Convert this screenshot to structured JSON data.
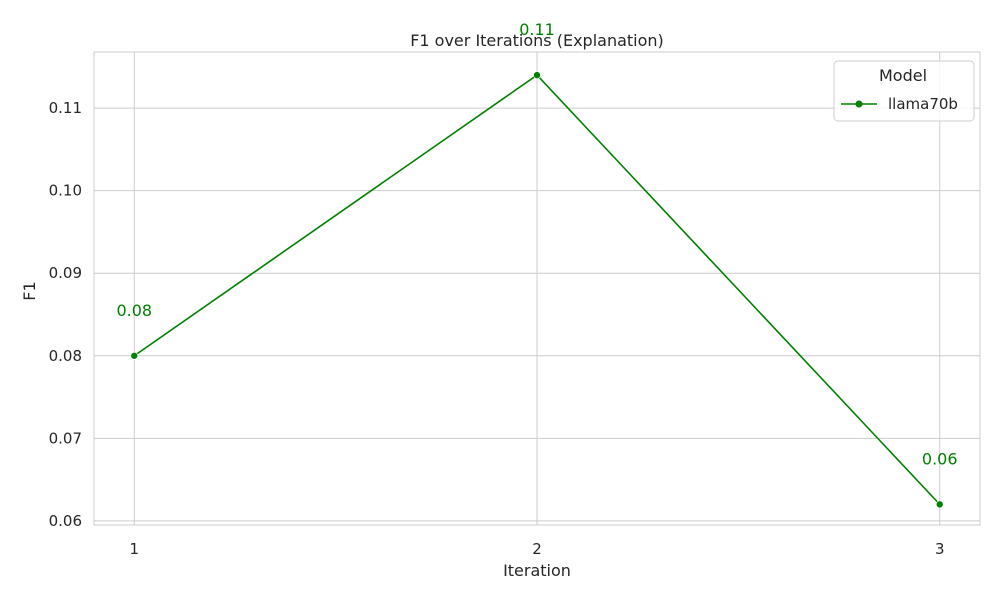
{
  "chart_data": {
    "type": "line",
    "title": "F1 over Iterations (Explanation)",
    "xlabel": "Iteration",
    "ylabel": "F1",
    "x": [
      1,
      2,
      3
    ],
    "xticks": [
      "1",
      "2",
      "3"
    ],
    "ylim": [
      0.0595,
      0.1168
    ],
    "yticks": [
      0.06,
      0.07,
      0.08,
      0.09,
      0.1,
      0.11
    ],
    "ytick_labels": [
      "0.06",
      "0.07",
      "0.08",
      "0.09",
      "0.10",
      "0.11"
    ],
    "grid": true,
    "legend": {
      "title": "Model",
      "placement": "top-right"
    },
    "series": [
      {
        "name": "llama70b",
        "color": "#008000",
        "values": [
          0.08,
          0.114,
          0.062
        ],
        "data_labels": [
          "0.08",
          "0.11",
          "0.06"
        ]
      }
    ]
  }
}
